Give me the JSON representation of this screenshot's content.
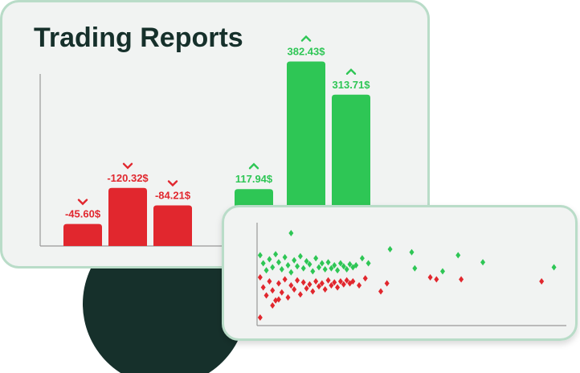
{
  "chart_data": [
    {
      "type": "bar",
      "title": "Trading Reports",
      "values": [
        -45.6,
        -120.32,
        -84.21,
        117.94,
        382.43,
        313.71
      ],
      "value_labels": [
        "-45.60$",
        "-120.32$",
        "-84.21$",
        "117.94$",
        "382.43$",
        "313.71$"
      ],
      "colors": [
        "#e1272e",
        "#e1272e",
        "#e1272e",
        "#2ec655",
        "#2ec655",
        "#2ec655"
      ],
      "ylim": [
        0,
        400
      ]
    },
    {
      "type": "scatter",
      "xlim": [
        0,
        100
      ],
      "ylim": [
        0,
        100
      ],
      "series": [
        {
          "color": "#2ec655",
          "x": [
            1,
            2,
            3,
            4,
            5,
            6,
            7,
            8,
            9,
            10,
            11,
            12,
            13,
            14,
            15,
            16,
            17,
            18,
            19,
            20,
            21,
            22,
            23,
            24,
            25,
            26,
            27,
            28,
            29,
            30,
            31,
            32,
            11,
            34,
            36,
            43,
            50,
            51,
            60,
            65,
            73,
            96
          ],
          "values": [
            70,
            62,
            55,
            66,
            58,
            71,
            63,
            56,
            68,
            60,
            53,
            65,
            59,
            69,
            57,
            64,
            61,
            54,
            67,
            58,
            62,
            56,
            63,
            57,
            60,
            55,
            62,
            59,
            56,
            61,
            58,
            60,
            92,
            67,
            62,
            76,
            73,
            57,
            54,
            70,
            63,
            58
          ]
        },
        {
          "color": "#e1272e",
          "x": [
            1,
            2,
            3,
            4,
            5,
            6,
            7,
            8,
            9,
            10,
            11,
            12,
            13,
            14,
            15,
            16,
            17,
            18,
            19,
            20,
            21,
            22,
            23,
            24,
            25,
            26,
            27,
            28,
            29,
            30,
            31,
            33,
            35,
            40,
            42,
            56,
            58,
            66,
            92,
            5,
            1,
            7
          ],
          "values": [
            48,
            38,
            30,
            44,
            35,
            25,
            42,
            33,
            46,
            28,
            40,
            36,
            45,
            31,
            43,
            37,
            41,
            34,
            44,
            39,
            42,
            36,
            45,
            40,
            43,
            38,
            44,
            41,
            45,
            42,
            44,
            40,
            47,
            34,
            42,
            48,
            46,
            46,
            44,
            20,
            8,
            26
          ]
        }
      ]
    }
  ]
}
